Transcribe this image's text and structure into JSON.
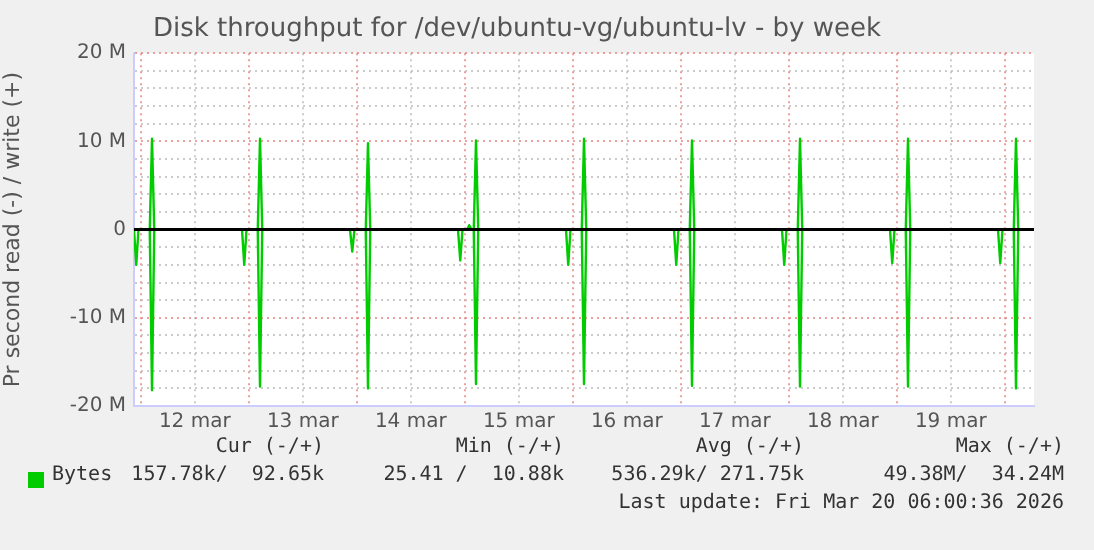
{
  "chart_data": {
    "type": "line",
    "title": "Disk throughput for /dev/ubuntu-vg/ubuntu-lv - by week",
    "ylabel": "Pr second read (-) / write (+)",
    "xlim": [
      "2026-03-11T22:30",
      "2026-03-20T06:30"
    ],
    "xticks": [
      {
        "value": "2026-03-12T00:00",
        "label": null
      },
      {
        "value": "2026-03-12T12:00",
        "label": "12 mar"
      },
      {
        "value": "2026-03-13T00:00",
        "label": null
      },
      {
        "value": "2026-03-13T12:00",
        "label": "13 mar"
      },
      {
        "value": "2026-03-14T00:00",
        "label": null
      },
      {
        "value": "2026-03-14T12:00",
        "label": "14 mar"
      },
      {
        "value": "2026-03-15T00:00",
        "label": null
      },
      {
        "value": "2026-03-15T12:00",
        "label": "15 mar"
      },
      {
        "value": "2026-03-16T00:00",
        "label": null
      },
      {
        "value": "2026-03-16T12:00",
        "label": "16 mar"
      },
      {
        "value": "2026-03-17T00:00",
        "label": null
      },
      {
        "value": "2026-03-17T12:00",
        "label": "17 mar"
      },
      {
        "value": "2026-03-18T00:00",
        "label": null
      },
      {
        "value": "2026-03-18T12:00",
        "label": "18 mar"
      },
      {
        "value": "2026-03-19T00:00",
        "label": null
      },
      {
        "value": "2026-03-19T12:00",
        "label": "19 mar"
      },
      {
        "value": "2026-03-20T00:00",
        "label": null
      }
    ],
    "ylim": [
      -20000000,
      20000000
    ],
    "yticks": [
      {
        "value": -20000000,
        "label": "-20 M"
      },
      {
        "value": -18000000,
        "label": null
      },
      {
        "value": -16000000,
        "label": null
      },
      {
        "value": -14000000,
        "label": null
      },
      {
        "value": -12000000,
        "label": null
      },
      {
        "value": -10000000,
        "label": "-10 M"
      },
      {
        "value": -8000000,
        "label": null
      },
      {
        "value": -6000000,
        "label": null
      },
      {
        "value": -4000000,
        "label": null
      },
      {
        "value": -2000000,
        "label": null
      },
      {
        "value": 0,
        "label": "0"
      },
      {
        "value": 2000000,
        "label": null
      },
      {
        "value": 4000000,
        "label": null
      },
      {
        "value": 6000000,
        "label": null
      },
      {
        "value": 8000000,
        "label": null
      },
      {
        "value": 10000000,
        "label": "10 M"
      },
      {
        "value": 12000000,
        "label": null
      },
      {
        "value": 14000000,
        "label": null
      },
      {
        "value": 16000000,
        "label": null
      },
      {
        "value": 18000000,
        "label": null
      },
      {
        "value": 20000000,
        "label": "20 M"
      }
    ],
    "grid": true,
    "legend": "bottom left",
    "marker": "none",
    "line_style": "solid",
    "ref_lines": [
      {
        "axis": "y",
        "value": 0,
        "color": "#000000"
      }
    ],
    "series": [
      {
        "name": "Bytes",
        "color": "#00cc00",
        "x": [
          "2026-03-11T22:30",
          "2026-03-12T02:00",
          "2026-03-12T02:30",
          "2026-03-12T03:00",
          "2026-03-13T02:00",
          "2026-03-13T02:30",
          "2026-03-13T03:00",
          "2026-03-14T02:00",
          "2026-03-14T02:30",
          "2026-03-14T03:00",
          "2026-03-15T00:30",
          "2026-03-15T01:00",
          "2026-03-15T01:30",
          "2026-03-15T02:00",
          "2026-03-15T02:30",
          "2026-03-15T03:00",
          "2026-03-16T02:00",
          "2026-03-16T02:30",
          "2026-03-16T03:00",
          "2026-03-17T02:00",
          "2026-03-17T02:30",
          "2026-03-17T03:00",
          "2026-03-18T02:00",
          "2026-03-18T02:30",
          "2026-03-18T03:00",
          "2026-03-19T02:00",
          "2026-03-19T02:30",
          "2026-03-19T03:00",
          "2026-03-20T02:00",
          "2026-03-20T02:30",
          "2026-03-20T03:00",
          "2026-03-20T06:00"
        ],
        "values": [
          0,
          0,
          10300000,
          0,
          0,
          10300000,
          0,
          0,
          9800000,
          0,
          0,
          500000,
          0,
          0,
          10100000,
          0,
          0,
          10300000,
          0,
          0,
          10100000,
          0,
          0,
          10300000,
          0,
          0,
          10300000,
          0,
          0,
          10300000,
          0,
          0
        ]
      },
      {
        "color": "#00cc00",
        "x": [
          "2026-03-11T22:30",
          "2026-03-11T23:00",
          "2026-03-11T23:30",
          "2026-03-12T02:00",
          "2026-03-12T02:30",
          "2026-03-12T03:00",
          "2026-03-12T22:30",
          "2026-03-12T23:00",
          "2026-03-12T23:30",
          "2026-03-13T02:00",
          "2026-03-13T02:30",
          "2026-03-13T03:00",
          "2026-03-13T22:30",
          "2026-03-13T23:00",
          "2026-03-13T23:30",
          "2026-03-14T02:00",
          "2026-03-14T02:30",
          "2026-03-14T03:00",
          "2026-03-14T22:30",
          "2026-03-14T23:00",
          "2026-03-14T23:30",
          "2026-03-15T02:00",
          "2026-03-15T02:30",
          "2026-03-15T03:00",
          "2026-03-15T22:30",
          "2026-03-15T23:00",
          "2026-03-15T23:30",
          "2026-03-16T02:00",
          "2026-03-16T02:30",
          "2026-03-16T03:00",
          "2026-03-16T22:30",
          "2026-03-16T23:00",
          "2026-03-16T23:30",
          "2026-03-17T02:00",
          "2026-03-17T02:30",
          "2026-03-17T03:00",
          "2026-03-17T22:30",
          "2026-03-17T23:00",
          "2026-03-17T23:30",
          "2026-03-18T02:00",
          "2026-03-18T02:30",
          "2026-03-18T03:00",
          "2026-03-18T22:30",
          "2026-03-18T23:00",
          "2026-03-18T23:30",
          "2026-03-19T02:00",
          "2026-03-19T02:30",
          "2026-03-19T03:00",
          "2026-03-19T22:30",
          "2026-03-19T23:00",
          "2026-03-19T23:30",
          "2026-03-20T02:00",
          "2026-03-20T02:30",
          "2026-03-20T03:00",
          "2026-03-20T06:00"
        ],
        "values": [
          0,
          -4000000,
          0,
          0,
          -18200000,
          0,
          0,
          -4000000,
          0,
          0,
          -17800000,
          0,
          0,
          -2500000,
          0,
          0,
          -18000000,
          0,
          0,
          -3500000,
          0,
          0,
          -17500000,
          0,
          0,
          -4000000,
          0,
          0,
          -17500000,
          0,
          0,
          -4000000,
          0,
          0,
          -17700000,
          0,
          0,
          -4000000,
          0,
          0,
          -17800000,
          0,
          0,
          -3800000,
          0,
          0,
          -17800000,
          0,
          0,
          -3800000,
          0,
          0,
          -18000000,
          0,
          0
        ]
      }
    ],
    "annotations": [
      "Cur (-/+)",
      "Min (-/+)",
      "Avg (-/+)",
      "Max (-/+)",
      "157.78k/  92.65k",
      "25.41 /  10.88k",
      "536.29k/ 271.75k",
      "49.38M/  34.24M",
      "Last update: Fri Mar 20 06:00:36 2026"
    ]
  }
}
